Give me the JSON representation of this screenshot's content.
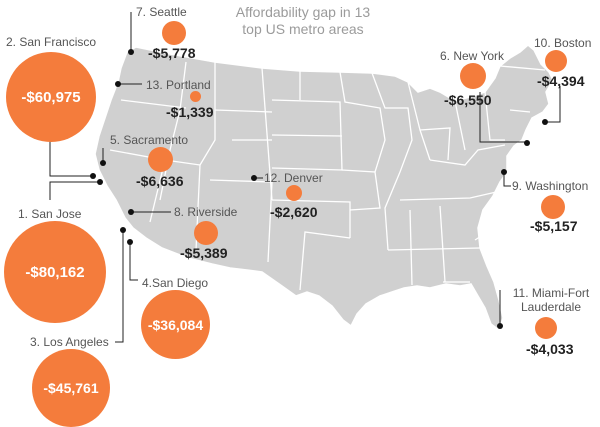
{
  "title_line1": "Affordability gap in 13",
  "title_line2": "top US metro areas",
  "colors": {
    "bubble": "#f47c3c",
    "land": "#d0d0d0",
    "border": "#ffffff",
    "leader": "#222222"
  },
  "metros": [
    {
      "rank": 1,
      "label": "1. San Jose",
      "gap": "-$80,162"
    },
    {
      "rank": 2,
      "label": "2. San Francisco",
      "gap": "-$60,975"
    },
    {
      "rank": 3,
      "label": "3. Los Angeles",
      "gap": "-$45,761"
    },
    {
      "rank": 4,
      "label": "4.San Diego",
      "gap": "-$36,084"
    },
    {
      "rank": 5,
      "label": "5. Sacramento",
      "gap": "-$6,636"
    },
    {
      "rank": 6,
      "label": "6. New York",
      "gap": "-$6,550"
    },
    {
      "rank": 7,
      "label": "7. Seattle",
      "gap": "-$5,778"
    },
    {
      "rank": 8,
      "label": "8. Riverside",
      "gap": "-$5,389"
    },
    {
      "rank": 9,
      "label": "9. Washington",
      "gap": "-$5,157"
    },
    {
      "rank": 10,
      "label": "10. Boston",
      "gap": "-$4,394"
    },
    {
      "rank": 11,
      "label_line1": "11. Miami-Fort",
      "label_line2": "Lauderdale",
      "gap": "-$4,033"
    },
    {
      "rank": 12,
      "label": "12. Denver",
      "gap": "-$2,620"
    },
    {
      "rank": 13,
      "label": "13. Portland",
      "gap": "-$1,339"
    }
  ]
}
